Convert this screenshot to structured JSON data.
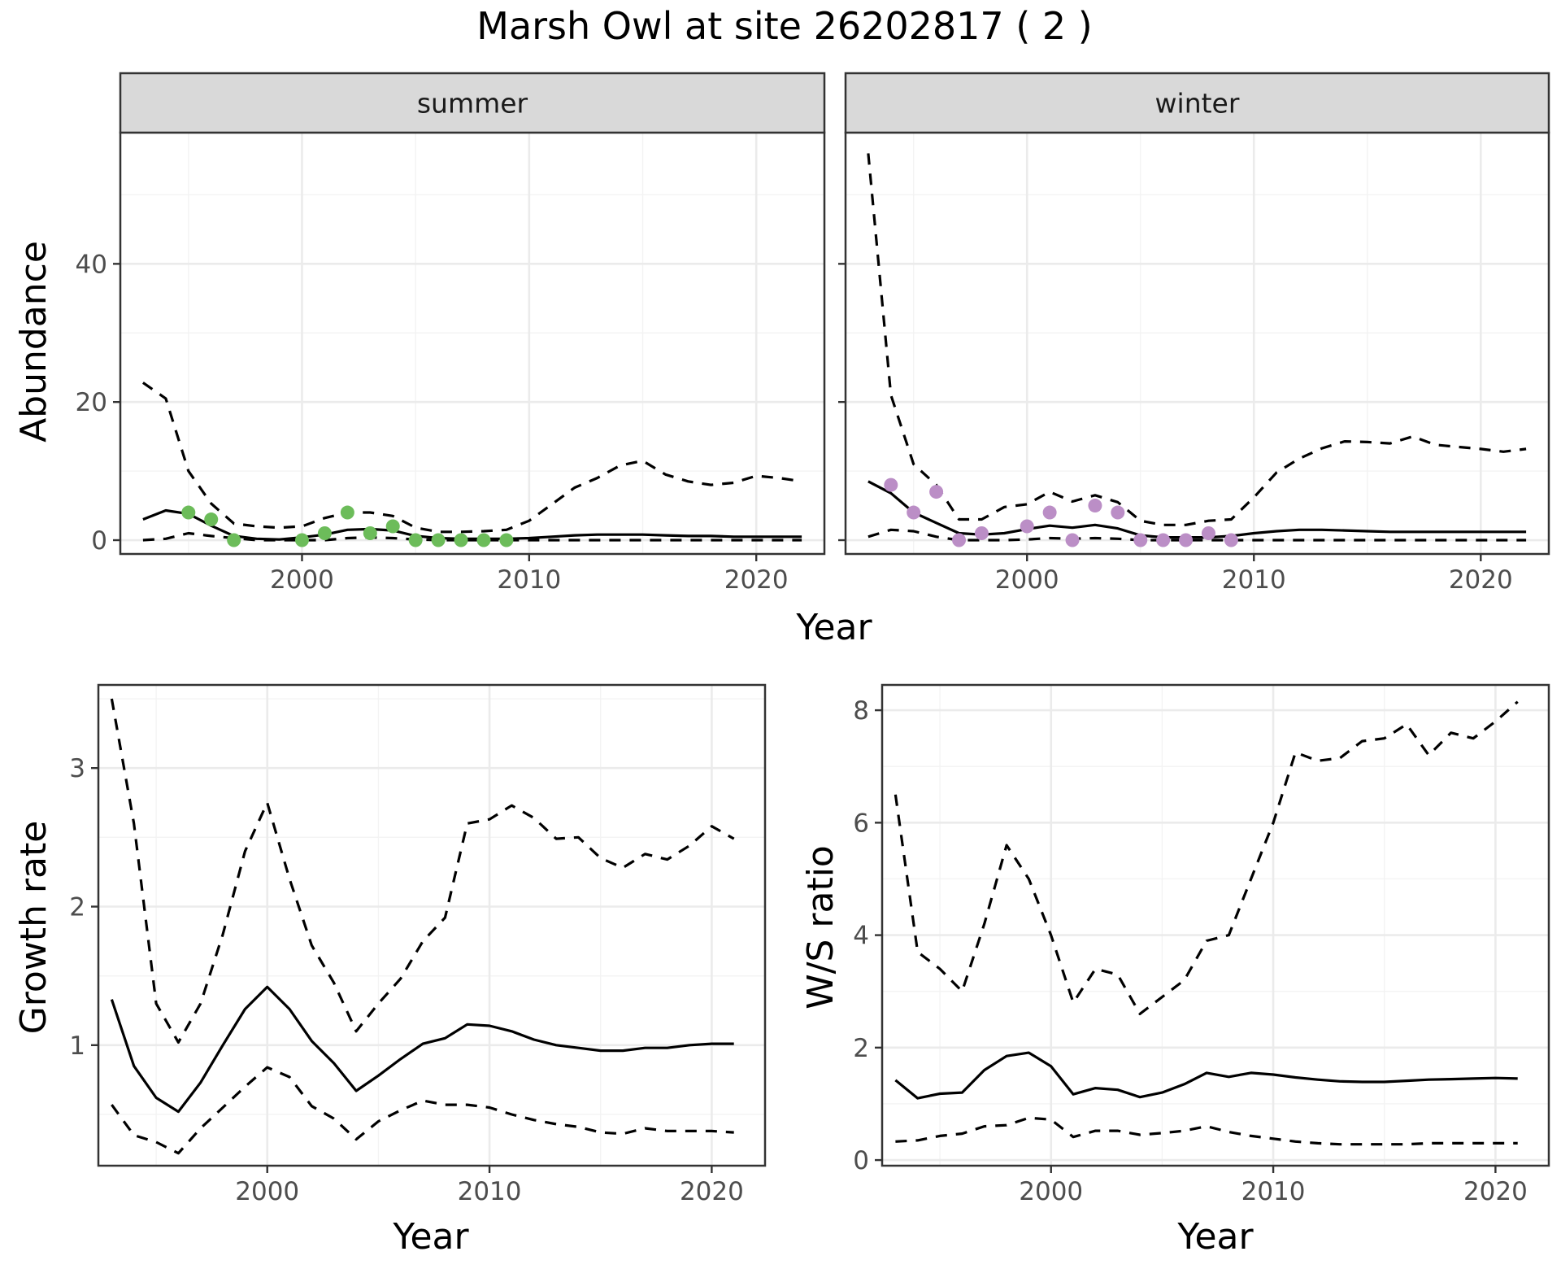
{
  "figure": {
    "title": "Marsh Owl at site 26202817 ( 2 )"
  },
  "colors": {
    "summer_points": "#6cbc5a",
    "winter_points": "#bb8ec6",
    "lines": "#000000"
  },
  "chart_data": [
    {
      "id": "abundance",
      "type": "line",
      "title": "",
      "xlabel": "Year",
      "ylabel": "Abundance",
      "xlim": [
        1992,
        2023
      ],
      "ylim": [
        -2,
        59
      ],
      "x_ticks": [
        2000,
        2010,
        2020
      ],
      "y_ticks": [
        0,
        20,
        40
      ],
      "grid": true,
      "facets": [
        {
          "label": "summer",
          "point_color": "#6cbc5a",
          "estimate": {
            "x": [
              1993,
              1994,
              1995,
              1996,
              1997,
              1998,
              1999,
              2000,
              2001,
              2002,
              2003,
              2004,
              2005,
              2006,
              2007,
              2008,
              2009,
              2010,
              2011,
              2012,
              2013,
              2014,
              2015,
              2016,
              2017,
              2018,
              2019,
              2020,
              2021,
              2022
            ],
            "y": [
              3.0,
              4.3,
              3.8,
              2.1,
              0.6,
              0.2,
              0.1,
              0.4,
              0.8,
              1.5,
              1.6,
              1.4,
              0.6,
              0.3,
              0.2,
              0.2,
              0.2,
              0.3,
              0.5,
              0.7,
              0.8,
              0.8,
              0.8,
              0.7,
              0.6,
              0.6,
              0.5,
              0.5,
              0.5,
              0.5
            ]
          },
          "upper": {
            "x": [
              1993,
              1994,
              1995,
              1996,
              1997,
              1998,
              1999,
              2000,
              2001,
              2002,
              2003,
              2004,
              2005,
              2006,
              2007,
              2008,
              2009,
              2010,
              2011,
              2012,
              2013,
              2014,
              2015,
              2016,
              2017,
              2018,
              2019,
              2020,
              2021,
              2022
            ],
            "y": [
              22.8,
              20.5,
              10.0,
              5.3,
              2.4,
              2.0,
              1.8,
              2.0,
              3.2,
              4.0,
              4.0,
              3.5,
              1.8,
              1.2,
              1.2,
              1.3,
              1.5,
              2.8,
              5.2,
              7.6,
              9.0,
              10.8,
              11.5,
              9.5,
              8.5,
              8.0,
              8.3,
              9.3,
              9.0,
              8.5
            ]
          },
          "lower": {
            "x": [
              1993,
              1994,
              1995,
              1996,
              1997,
              1998,
              1999,
              2000,
              2001,
              2002,
              2003,
              2004,
              2005,
              2006,
              2007,
              2008,
              2009,
              2010,
              2011,
              2012,
              2013,
              2014,
              2015,
              2016,
              2017,
              2018,
              2019,
              2020,
              2021,
              2022
            ],
            "y": [
              0.0,
              0.2,
              1.0,
              0.6,
              0.3,
              0.0,
              0.0,
              0.0,
              0.0,
              0.3,
              0.4,
              0.3,
              0.1,
              0.0,
              0.0,
              0.0,
              0.0,
              0.0,
              0.0,
              0.0,
              0.0,
              0.0,
              0.0,
              0.0,
              0.0,
              0.0,
              0.0,
              0.0,
              0.0,
              0.0
            ]
          },
          "points": {
            "x": [
              1995,
              1996,
              1997,
              2000,
              2001,
              2002,
              2003,
              2004,
              2005,
              2006,
              2007,
              2008,
              2009
            ],
            "y": [
              4,
              3,
              0,
              0,
              1,
              4,
              1,
              2,
              0,
              0,
              0,
              0,
              0
            ]
          }
        },
        {
          "label": "winter",
          "point_color": "#bb8ec6",
          "estimate": {
            "x": [
              1993,
              1994,
              1995,
              1996,
              1997,
              1998,
              1999,
              2000,
              2001,
              2002,
              2003,
              2004,
              2005,
              2006,
              2007,
              2008,
              2009,
              2010,
              2011,
              2012,
              2013,
              2014,
              2015,
              2016,
              2017,
              2018,
              2019,
              2020,
              2021,
              2022
            ],
            "y": [
              8.5,
              6.8,
              4.0,
              2.5,
              1.0,
              0.8,
              1.0,
              1.6,
              2.1,
              1.8,
              2.2,
              1.7,
              0.7,
              0.4,
              0.4,
              0.4,
              0.6,
              1.0,
              1.3,
              1.5,
              1.5,
              1.4,
              1.3,
              1.2,
              1.2,
              1.2,
              1.2,
              1.2,
              1.2,
              1.2
            ]
          },
          "upper": {
            "x": [
              1993,
              1994,
              1995,
              1996,
              1997,
              1998,
              1999,
              2000,
              2001,
              2002,
              2003,
              2004,
              2005,
              2006,
              2007,
              2008,
              2009,
              2010,
              2011,
              2012,
              2013,
              2014,
              2015,
              2016,
              2017,
              2018,
              2019,
              2020,
              2021,
              2022
            ],
            "y": [
              56.0,
              21.0,
              11.0,
              8.0,
              3.0,
              3.0,
              4.8,
              5.2,
              7.0,
              5.6,
              6.5,
              5.5,
              2.8,
              2.2,
              2.2,
              2.8,
              3.0,
              6.2,
              9.8,
              11.8,
              13.3,
              14.3,
              14.2,
              14.0,
              15.0,
              13.8,
              13.5,
              13.2,
              12.8,
              13.2
            ]
          },
          "lower": {
            "x": [
              1993,
              1994,
              1995,
              1996,
              1997,
              1998,
              1999,
              2000,
              2001,
              2002,
              2003,
              2004,
              2005,
              2006,
              2007,
              2008,
              2009,
              2010,
              2011,
              2012,
              2013,
              2014,
              2015,
              2016,
              2017,
              2018,
              2019,
              2020,
              2021,
              2022
            ],
            "y": [
              0.5,
              1.5,
              1.3,
              0.5,
              0.0,
              0.0,
              0.0,
              0.1,
              0.3,
              0.2,
              0.3,
              0.2,
              0.0,
              0.0,
              0.0,
              0.0,
              0.0,
              0.0,
              0.0,
              0.0,
              0.0,
              0.0,
              0.0,
              0.0,
              0.0,
              0.0,
              0.0,
              0.0,
              0.0,
              0.0
            ]
          },
          "points": {
            "x": [
              1994,
              1995,
              1996,
              1997,
              1998,
              2000,
              2001,
              2002,
              2003,
              2004,
              2005,
              2006,
              2007,
              2008,
              2009
            ],
            "y": [
              8,
              4,
              7,
              0,
              1,
              2,
              4,
              0,
              5,
              4,
              0,
              0,
              0,
              1,
              0
            ]
          }
        }
      ]
    },
    {
      "id": "growth",
      "type": "line",
      "title": "",
      "xlabel": "Year",
      "ylabel": "Growth rate",
      "xlim": [
        1992.4,
        2022.4
      ],
      "ylim": [
        0.13,
        3.6
      ],
      "x_ticks": [
        2000,
        2010,
        2020
      ],
      "y_ticks": [
        1,
        2,
        3
      ],
      "grid": true,
      "estimate": {
        "x": [
          1993,
          1994,
          1995,
          1996,
          1997,
          1998,
          1999,
          2000,
          2001,
          2002,
          2003,
          2004,
          2005,
          2006,
          2007,
          2008,
          2009,
          2010,
          2011,
          2012,
          2013,
          2014,
          2015,
          2016,
          2017,
          2018,
          2019,
          2020,
          2021
        ],
        "y": [
          1.33,
          0.85,
          0.62,
          0.52,
          0.73,
          1.0,
          1.26,
          1.42,
          1.26,
          1.03,
          0.87,
          0.67,
          0.78,
          0.9,
          1.01,
          1.05,
          1.15,
          1.14,
          1.1,
          1.04,
          1.0,
          0.98,
          0.96,
          0.96,
          0.98,
          0.98,
          1.0,
          1.01,
          1.01
        ]
      },
      "upper": {
        "x": [
          1993,
          1994,
          1995,
          1996,
          1997,
          1998,
          1999,
          2000,
          2001,
          2002,
          2003,
          2004,
          2005,
          2006,
          2007,
          2008,
          2009,
          2010,
          2011,
          2012,
          2013,
          2014,
          2015,
          2016,
          2017,
          2018,
          2019,
          2020,
          2021
        ],
        "y": [
          3.5,
          2.6,
          1.3,
          1.02,
          1.3,
          1.8,
          2.4,
          2.75,
          2.2,
          1.72,
          1.45,
          1.1,
          1.3,
          1.48,
          1.75,
          1.92,
          2.6,
          2.63,
          2.73,
          2.64,
          2.49,
          2.5,
          2.35,
          2.28,
          2.38,
          2.34,
          2.44,
          2.58,
          2.49
        ]
      },
      "lower": {
        "x": [
          1993,
          1994,
          1995,
          1996,
          1997,
          1998,
          1999,
          2000,
          2001,
          2002,
          2003,
          2004,
          2005,
          2006,
          2007,
          2008,
          2009,
          2010,
          2011,
          2012,
          2013,
          2014,
          2015,
          2016,
          2017,
          2018,
          2019,
          2020,
          2021
        ],
        "y": [
          0.57,
          0.35,
          0.3,
          0.22,
          0.4,
          0.55,
          0.7,
          0.84,
          0.77,
          0.56,
          0.47,
          0.32,
          0.45,
          0.53,
          0.6,
          0.57,
          0.57,
          0.55,
          0.5,
          0.46,
          0.43,
          0.41,
          0.37,
          0.36,
          0.4,
          0.38,
          0.38,
          0.38,
          0.37
        ]
      }
    },
    {
      "id": "ws_ratio",
      "type": "line",
      "title": "",
      "xlabel": "Year",
      "ylabel": "W/S ratio",
      "xlim": [
        1992.4,
        2022.4
      ],
      "ylim": [
        -0.1,
        8.45
      ],
      "x_ticks": [
        2000,
        2010,
        2020
      ],
      "y_ticks": [
        0,
        2,
        4,
        6,
        8
      ],
      "grid": true,
      "estimate": {
        "x": [
          1993,
          1994,
          1995,
          1996,
          1997,
          1998,
          1999,
          2000,
          2001,
          2002,
          2003,
          2004,
          2005,
          2006,
          2007,
          2008,
          2009,
          2010,
          2011,
          2012,
          2013,
          2014,
          2015,
          2016,
          2017,
          2018,
          2019,
          2020,
          2021
        ],
        "y": [
          1.42,
          1.1,
          1.18,
          1.2,
          1.6,
          1.85,
          1.91,
          1.67,
          1.17,
          1.28,
          1.25,
          1.12,
          1.2,
          1.35,
          1.55,
          1.48,
          1.55,
          1.52,
          1.47,
          1.43,
          1.4,
          1.39,
          1.39,
          1.41,
          1.43,
          1.44,
          1.45,
          1.46,
          1.45
        ]
      },
      "upper": {
        "x": [
          1993,
          1994,
          1995,
          1996,
          1997,
          1998,
          1999,
          2000,
          2001,
          2002,
          2003,
          2004,
          2005,
          2006,
          2007,
          2008,
          2009,
          2010,
          2011,
          2012,
          2013,
          2014,
          2015,
          2016,
          2017,
          2018,
          2019,
          2020,
          2021
        ],
        "y": [
          6.5,
          3.7,
          3.4,
          3.0,
          4.2,
          5.6,
          5.0,
          4.0,
          2.8,
          3.4,
          3.3,
          2.6,
          2.9,
          3.2,
          3.9,
          4.0,
          5.0,
          6.0,
          7.25,
          7.1,
          7.15,
          7.45,
          7.5,
          7.75,
          7.2,
          7.6,
          7.5,
          7.8,
          8.15
        ]
      },
      "lower": {
        "x": [
          1993,
          1994,
          1995,
          1996,
          1997,
          1998,
          1999,
          2000,
          2001,
          2002,
          2003,
          2004,
          2005,
          2006,
          2007,
          2008,
          2009,
          2010,
          2011,
          2012,
          2013,
          2014,
          2015,
          2016,
          2017,
          2018,
          2019,
          2020,
          2021
        ],
        "y": [
          0.33,
          0.35,
          0.43,
          0.47,
          0.6,
          0.62,
          0.75,
          0.72,
          0.41,
          0.52,
          0.52,
          0.45,
          0.48,
          0.52,
          0.6,
          0.5,
          0.43,
          0.38,
          0.33,
          0.3,
          0.28,
          0.28,
          0.28,
          0.28,
          0.3,
          0.3,
          0.3,
          0.3,
          0.3
        ]
      }
    }
  ]
}
